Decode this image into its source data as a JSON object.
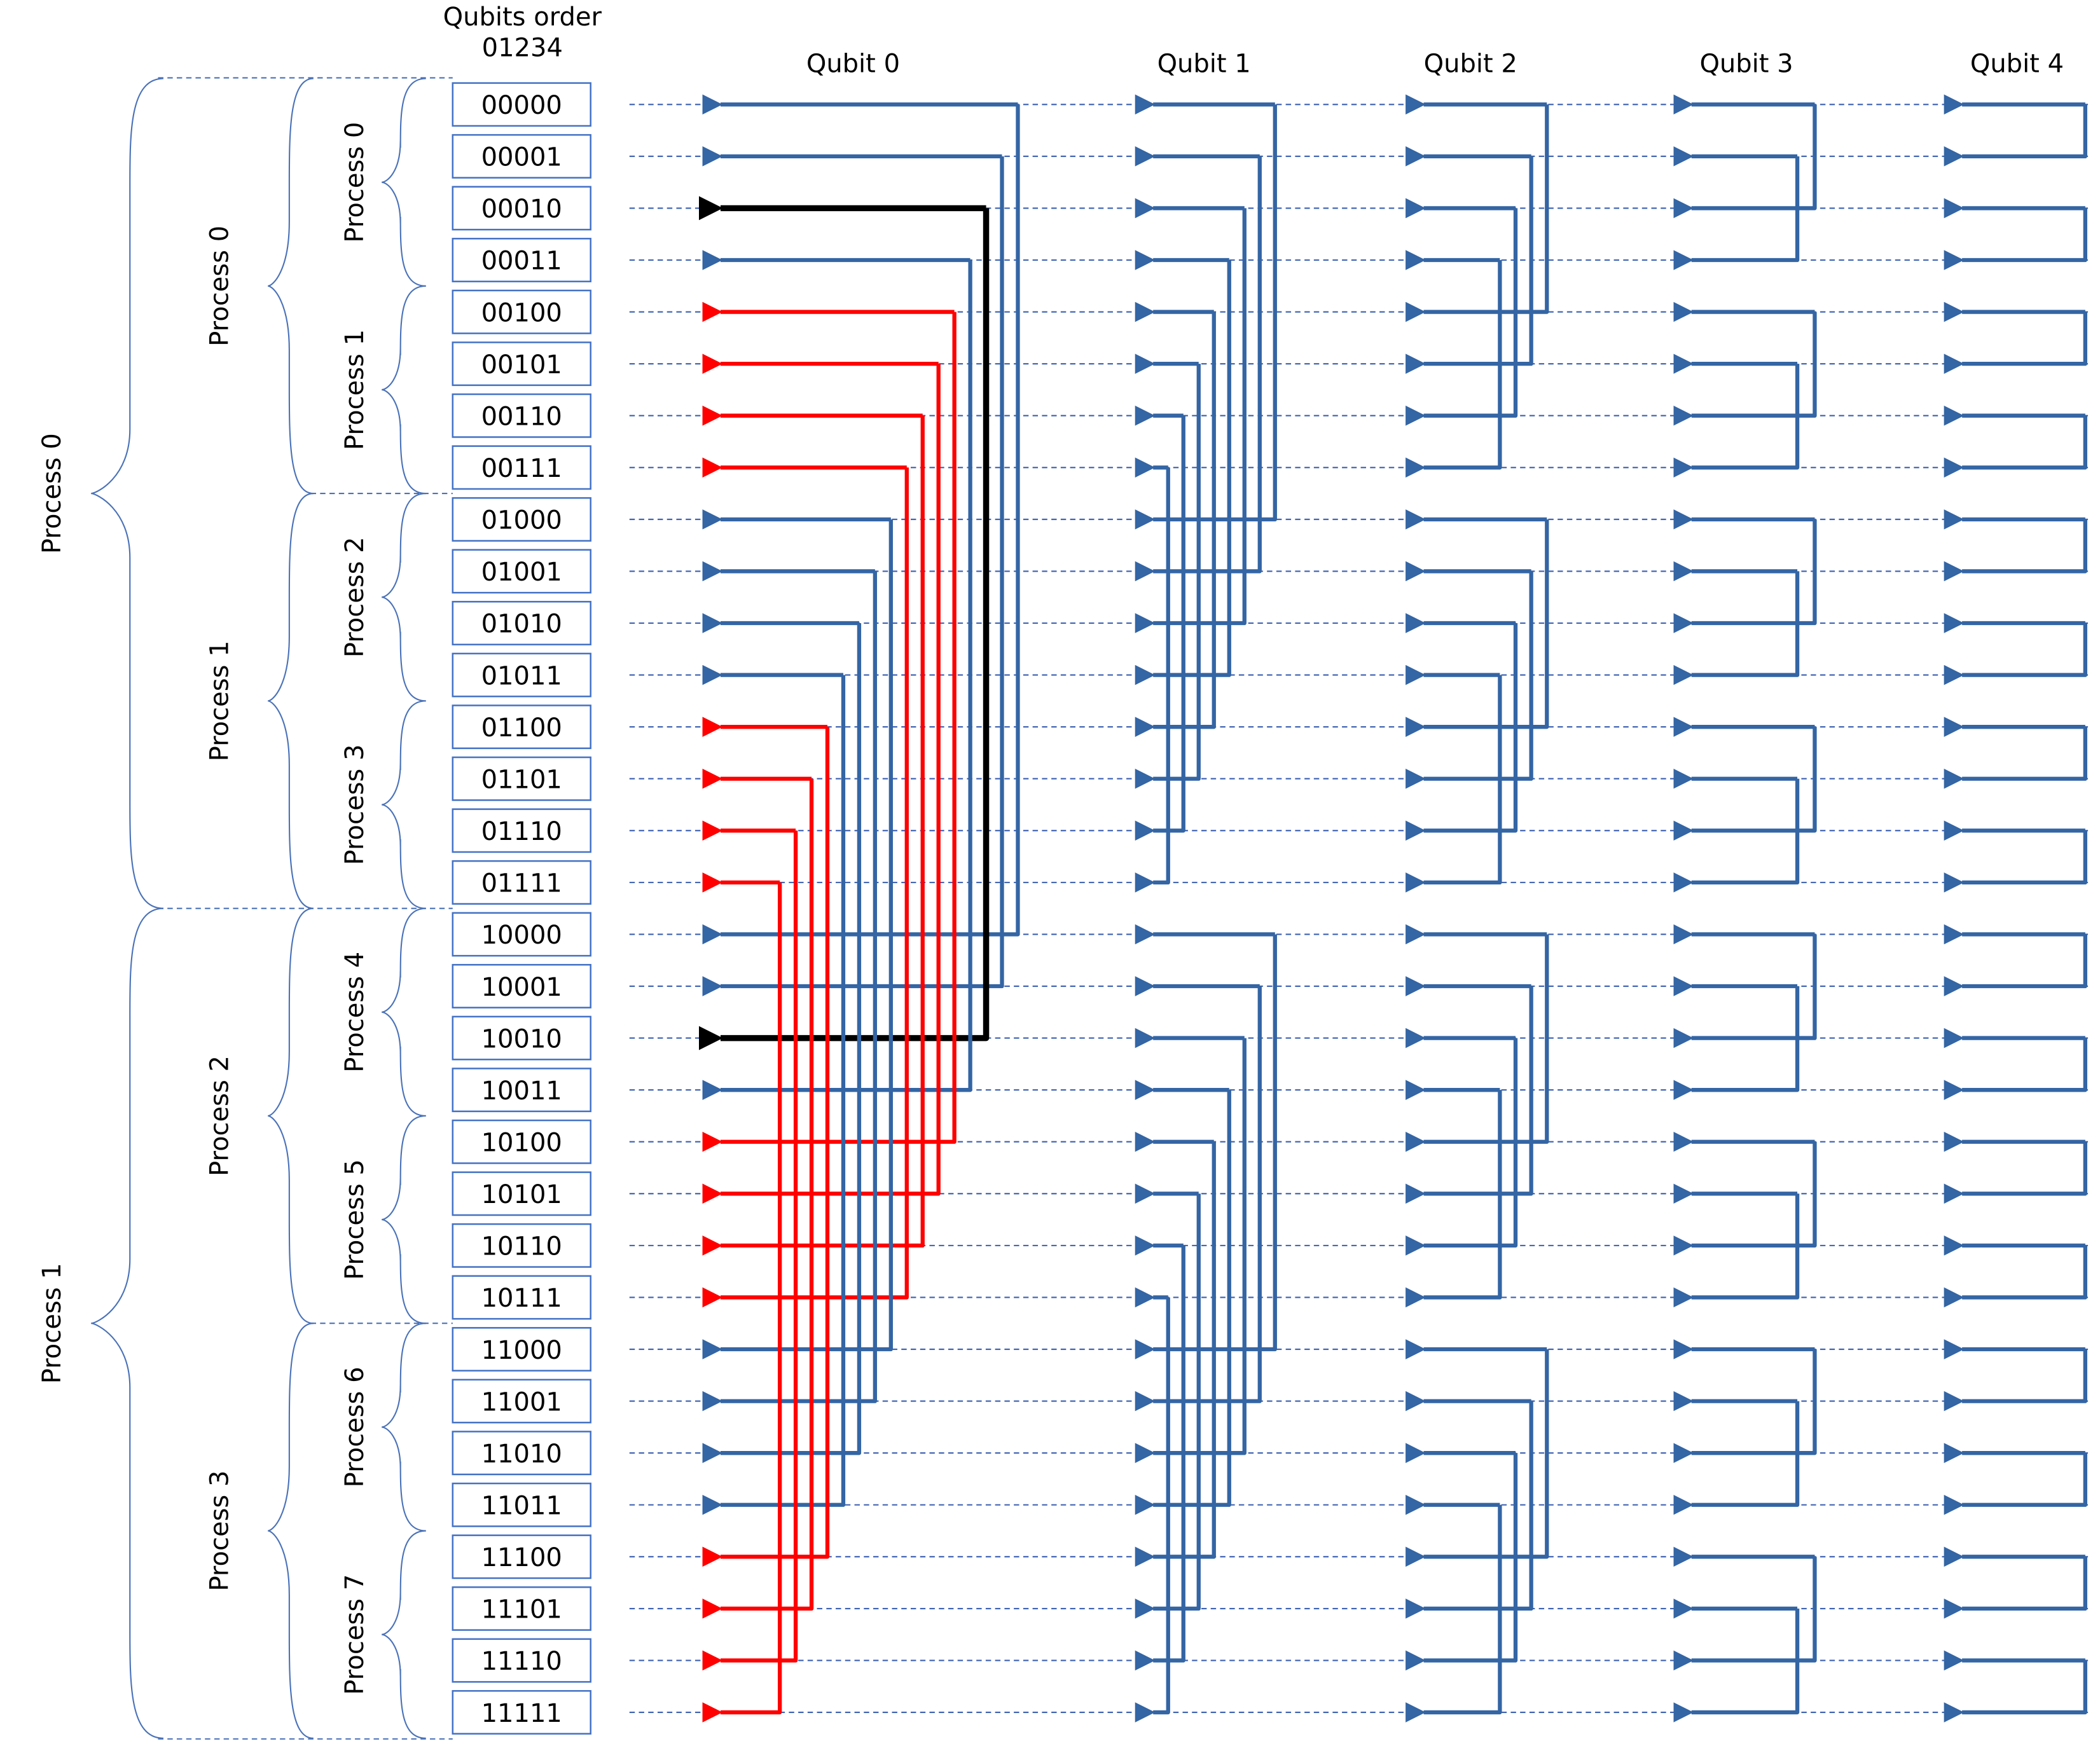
{
  "header": {
    "qubits_order_title": "Qubits order",
    "qubits_order_value": "01234"
  },
  "qubit_labels": [
    "Qubit 0",
    "Qubit 1",
    "Qubit 2",
    "Qubit 3",
    "Qubit 4"
  ],
  "states": [
    "00000",
    "00001",
    "00010",
    "00011",
    "00100",
    "00101",
    "00110",
    "00111",
    "01000",
    "01001",
    "01010",
    "01011",
    "01100",
    "01101",
    "01110",
    "01111",
    "10000",
    "10001",
    "10010",
    "10011",
    "10100",
    "10101",
    "10110",
    "10111",
    "11000",
    "11001",
    "11010",
    "11011",
    "11100",
    "11101",
    "11110",
    "11111"
  ],
  "process_groups": {
    "level1": [
      {
        "label": "Process 0",
        "rows": [
          0,
          15
        ]
      },
      {
        "label": "Process 1",
        "rows": [
          16,
          31
        ]
      }
    ],
    "level2": [
      {
        "label": "Process 0",
        "rows": [
          0,
          7
        ]
      },
      {
        "label": "Process 1",
        "rows": [
          8,
          15
        ]
      },
      {
        "label": "Process 2",
        "rows": [
          16,
          23
        ]
      },
      {
        "label": "Process 3",
        "rows": [
          24,
          31
        ]
      }
    ],
    "level3": [
      {
        "label": "Process 0",
        "rows": [
          0,
          3
        ]
      },
      {
        "label": "Process 1",
        "rows": [
          4,
          7
        ]
      },
      {
        "label": "Process 2",
        "rows": [
          8,
          11
        ]
      },
      {
        "label": "Process 3",
        "rows": [
          12,
          15
        ]
      },
      {
        "label": "Process 4",
        "rows": [
          16,
          19
        ]
      },
      {
        "label": "Process 5",
        "rows": [
          20,
          23
        ]
      },
      {
        "label": "Process 6",
        "rows": [
          24,
          27
        ]
      },
      {
        "label": "Process 7",
        "rows": [
          28,
          31
        ]
      }
    ]
  },
  "colors": {
    "default_arrow": "#3465a4",
    "highlight_red": "#ff0000",
    "highlight_black": "#000000",
    "dash_line": "#3a5fb0",
    "box_border": "#4472c4",
    "brace": "#4a72b8"
  },
  "swap_pairs": {
    "description": "Each qubit column pairs state i with state i XOR 2^(4-q)",
    "highlighted": {
      "qubit": 0,
      "black_rows": [
        2,
        18
      ],
      "red_rows": [
        4,
        5,
        6,
        7,
        12,
        13,
        14,
        15,
        20,
        21,
        22,
        23,
        28,
        29,
        30,
        31
      ]
    }
  }
}
